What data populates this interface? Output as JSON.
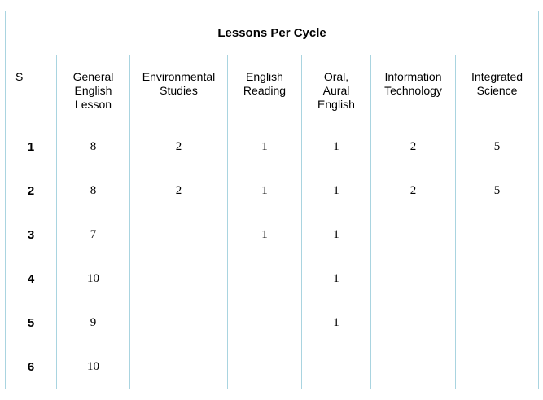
{
  "title": "Lessons Per Cycle",
  "columns": {
    "s": "S",
    "c1": [
      "General",
      "English",
      "Lesson"
    ],
    "c2": [
      "Environmental",
      "Studies"
    ],
    "c3": [
      "English",
      "Reading"
    ],
    "c4": [
      "Oral,",
      "Aural",
      "English"
    ],
    "c5": [
      "Information",
      "Technology"
    ],
    "c6": [
      "Integrated",
      "Science"
    ]
  },
  "rows": [
    {
      "s": "1",
      "v": [
        "8",
        "2",
        "1",
        "1",
        "2",
        "5"
      ]
    },
    {
      "s": "2",
      "v": [
        "8",
        "2",
        "1",
        "1",
        "2",
        "5"
      ]
    },
    {
      "s": "3",
      "v": [
        "7",
        "",
        "1",
        "1",
        "",
        ""
      ]
    },
    {
      "s": "4",
      "v": [
        "10",
        "",
        "",
        "1",
        "",
        ""
      ]
    },
    {
      "s": "5",
      "v": [
        "9",
        "",
        "",
        "1",
        "",
        ""
      ]
    },
    {
      "s": "6",
      "v": [
        "10",
        "",
        "",
        "",
        "",
        ""
      ]
    }
  ]
}
